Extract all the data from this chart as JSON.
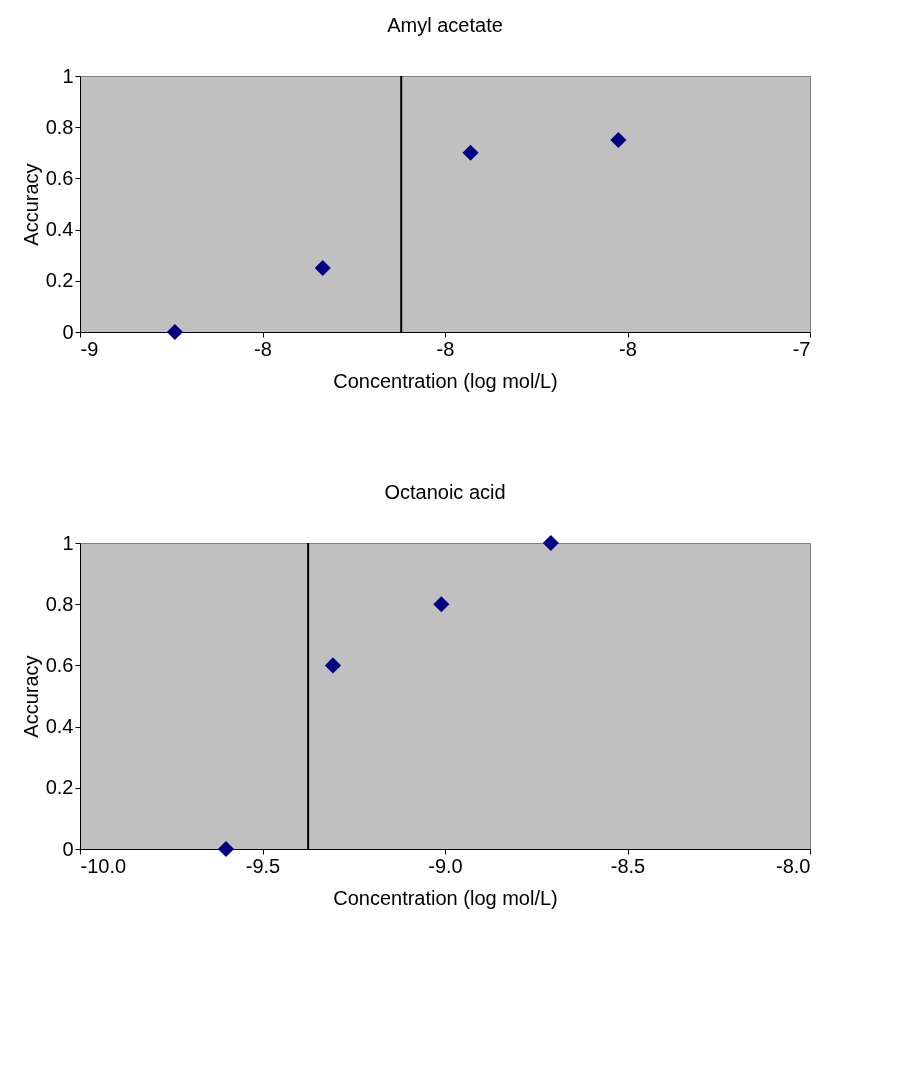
{
  "chart_data": [
    {
      "type": "scatter",
      "title": "Amyl acetate",
      "xlabel": "Concentration (log mol/L)",
      "ylabel": "Accuracy",
      "x": [
        -8.74,
        -8.335,
        -7.93,
        -7.525
      ],
      "series": [
        {
          "color": "#000080",
          "values": [
            0,
            0.25,
            0.7,
            0.75
          ]
        }
      ],
      "marker": "diamond",
      "grid": false,
      "xlim": [
        -9,
        -7
      ],
      "xticks": [
        -9,
        {
          "value": -8.5,
          "label": "-8"
        },
        -8,
        {
          "value": -7.5,
          "label": "-8"
        },
        -7
      ],
      "ylim": [
        0,
        1
      ],
      "yticks": [
        0,
        0.2,
        0.4,
        0.6,
        0.8,
        1
      ],
      "ref_lines": [
        {
          "axis": "x",
          "value": -8.12,
          "color": "#000000"
        }
      ]
    },
    {
      "type": "scatter",
      "title": "Octanoic acid",
      "xlabel": "Concentration (log mol/L)",
      "ylabel": "Accuracy",
      "x": [
        -9.6,
        -9.307,
        -9.01,
        -8.71
      ],
      "series": [
        {
          "color": "#000080",
          "values": [
            0,
            0.6,
            0.8,
            1
          ]
        }
      ],
      "marker": "diamond",
      "grid": false,
      "xlim": [
        -10,
        -8
      ],
      "xticks": [
        {
          "value": -10,
          "label": "-10.0"
        },
        {
          "value": -9.5,
          "label": "-9.5"
        },
        {
          "value": -9,
          "label": "-9.0"
        },
        {
          "value": -8.5,
          "label": "-8.5"
        },
        {
          "value": -8,
          "label": "-8.0"
        }
      ],
      "ylim": [
        0,
        1
      ],
      "yticks": [
        0,
        0.2,
        0.4,
        0.6,
        0.8,
        1
      ],
      "ref_lines": [
        {
          "axis": "x",
          "value": -9.375,
          "color": "#000000"
        }
      ]
    }
  ]
}
